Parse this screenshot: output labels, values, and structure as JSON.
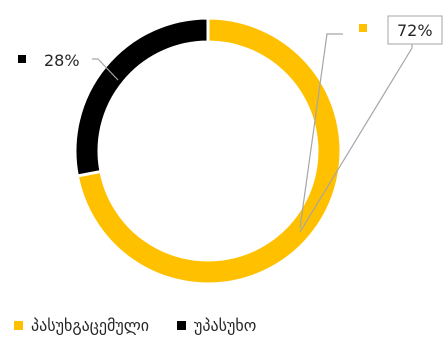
{
  "chart_data": {
    "type": "pie",
    "variant": "donut",
    "categories": [
      "პასუხგაცემული",
      "უპასუხო"
    ],
    "values": [
      72,
      28
    ],
    "data_labels": [
      "72%",
      "28%"
    ],
    "colors": [
      "#FFC000",
      "#000000"
    ],
    "legend_position": "bottom"
  }
}
